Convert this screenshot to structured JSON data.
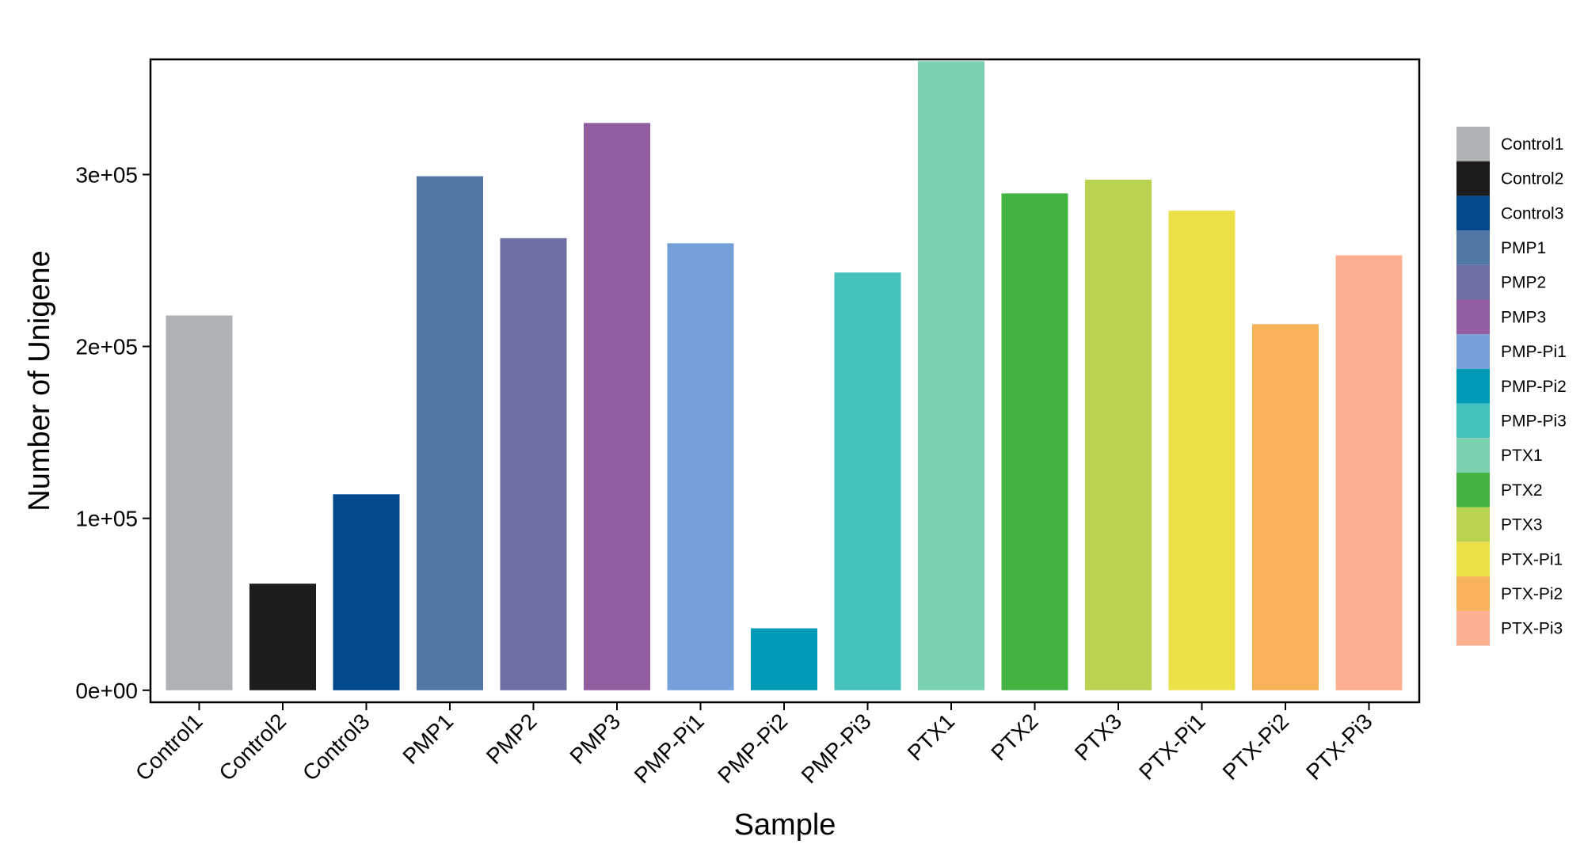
{
  "chart_data": {
    "type": "bar",
    "title": "",
    "xlabel": "Sample",
    "ylabel": "Number of Unigene",
    "ylim": [
      -7000,
      367000
    ],
    "yticks": [
      0,
      100000,
      200000,
      300000
    ],
    "ytick_labels": [
      "0e+00",
      "1e+05",
      "2e+05",
      "3e+05"
    ],
    "categories": [
      "Control1",
      "Control2",
      "Control3",
      "PMP1",
      "PMP2",
      "PMP3",
      "PMP-Pi1",
      "PMP-Pi2",
      "PMP-Pi3",
      "PTX1",
      "PTX2",
      "PTX3",
      "PTX-Pi1",
      "PTX-Pi2",
      "PTX-Pi3"
    ],
    "values": [
      218000,
      62000,
      114000,
      299000,
      263000,
      330000,
      260000,
      36000,
      243000,
      366000,
      289000,
      297000,
      279000,
      213000,
      253000
    ],
    "colors": [
      "#ADB3B5",
      "#1E1C1D",
      "#01488C",
      "#5277A5",
      "#6E6FA5",
      "#925E9F",
      "#769FDA",
      "#019AB6",
      "#44C1BB",
      "#79D1B0",
      "#43B441",
      "#B8D350",
      "#EDE14A",
      "#F8B258",
      "#FDAF91"
    ],
    "legend": {
      "position": "right",
      "entries": [
        "Control1",
        "Control2",
        "Control3",
        "PMP1",
        "PMP2",
        "PMP3",
        "PMP-Pi1",
        "PMP-Pi2",
        "PMP-Pi3",
        "PTX1",
        "PTX2",
        "PTX3",
        "PTX-Pi1",
        "PTX-Pi2",
        "PTX-Pi3"
      ]
    },
    "grid": false
  }
}
